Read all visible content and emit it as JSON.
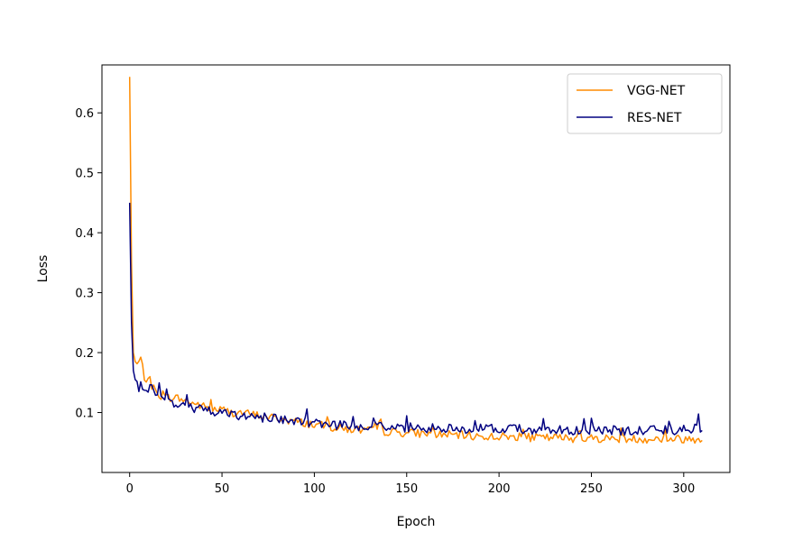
{
  "chart_data": {
    "type": "line",
    "title": "",
    "xlabel": "Epoch",
    "ylabel": "Loss",
    "xlim": [
      -15,
      325
    ],
    "ylim": [
      0.0,
      0.68
    ],
    "xticks": [
      0,
      50,
      100,
      150,
      200,
      250,
      300
    ],
    "yticks": [
      0.1,
      0.2,
      0.3,
      0.4,
      0.5,
      0.6
    ],
    "ytick_labels": [
      "0.1",
      "0.2",
      "0.3",
      "0.4",
      "0.5",
      "0.6"
    ],
    "grid": false,
    "legend_position": "top-right",
    "series": [
      {
        "name": "VGG-NET",
        "color": "#ff8c00",
        "x": [
          0,
          1,
          2,
          3,
          4,
          5,
          6,
          8,
          10,
          12,
          15,
          20,
          25,
          30,
          35,
          40,
          45,
          50,
          55,
          60,
          70,
          80,
          90,
          100,
          110,
          120,
          130,
          140,
          150,
          160,
          170,
          180,
          190,
          200,
          210,
          220,
          230,
          240,
          250,
          260,
          270,
          280,
          290,
          300,
          310
        ],
        "y": [
          0.66,
          0.35,
          0.2,
          0.185,
          0.18,
          0.185,
          0.19,
          0.16,
          0.15,
          0.145,
          0.13,
          0.125,
          0.125,
          0.12,
          0.115,
          0.11,
          0.105,
          0.105,
          0.1,
          0.1,
          0.095,
          0.09,
          0.085,
          0.08,
          0.075,
          0.072,
          0.07,
          0.068,
          0.066,
          0.065,
          0.063,
          0.062,
          0.06,
          0.06,
          0.059,
          0.058,
          0.058,
          0.057,
          0.057,
          0.057,
          0.056,
          0.056,
          0.056,
          0.056,
          0.056
        ]
      },
      {
        "name": "RES-NET",
        "color": "#000080",
        "x": [
          0,
          1,
          2,
          3,
          4,
          5,
          6,
          8,
          10,
          12,
          15,
          20,
          25,
          30,
          35,
          40,
          45,
          50,
          55,
          60,
          70,
          80,
          90,
          100,
          110,
          120,
          130,
          140,
          150,
          160,
          170,
          180,
          190,
          200,
          210,
          220,
          230,
          240,
          250,
          260,
          270,
          280,
          290,
          300,
          310
        ],
        "y": [
          0.45,
          0.25,
          0.17,
          0.155,
          0.145,
          0.14,
          0.145,
          0.14,
          0.14,
          0.135,
          0.13,
          0.12,
          0.115,
          0.11,
          0.108,
          0.105,
          0.1,
          0.1,
          0.097,
          0.095,
          0.092,
          0.09,
          0.085,
          0.082,
          0.08,
          0.078,
          0.077,
          0.076,
          0.075,
          0.074,
          0.074,
          0.073,
          0.073,
          0.072,
          0.072,
          0.071,
          0.071,
          0.07,
          0.07,
          0.07,
          0.07,
          0.07,
          0.07,
          0.07,
          0.075
        ]
      }
    ]
  }
}
